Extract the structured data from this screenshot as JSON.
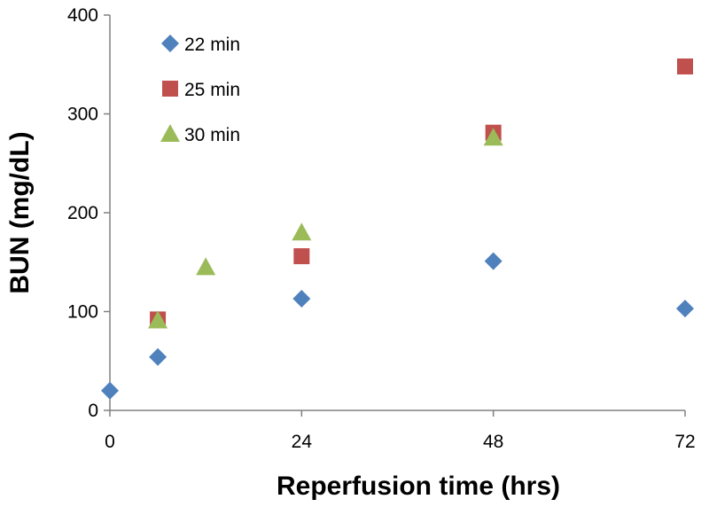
{
  "chart_data": {
    "type": "scatter",
    "title": "",
    "xlabel": "Reperfusion time (hrs)",
    "ylabel": "BUN (mg/dL)",
    "xlim": [
      0,
      72
    ],
    "ylim": [
      0,
      400
    ],
    "xticks": [
      0,
      24,
      48,
      72
    ],
    "yticks": [
      0,
      100,
      200,
      300,
      400
    ],
    "grid": false,
    "legend_position": "top-left",
    "series": [
      {
        "name": "22 min",
        "marker": "diamond",
        "color": "#4F81BD",
        "points": [
          {
            "x": 0,
            "y": 20
          },
          {
            "x": 6,
            "y": 54
          },
          {
            "x": 24,
            "y": 113
          },
          {
            "x": 48,
            "y": 151
          },
          {
            "x": 72,
            "y": 103
          }
        ]
      },
      {
        "name": "25 min",
        "marker": "square",
        "color": "#C0504D",
        "points": [
          {
            "x": 6,
            "y": 92
          },
          {
            "x": 24,
            "y": 156
          },
          {
            "x": 48,
            "y": 281
          },
          {
            "x": 72,
            "y": 348
          }
        ]
      },
      {
        "name": "30 min",
        "marker": "triangle",
        "color": "#9BBB59",
        "points": [
          {
            "x": 6,
            "y": 91
          },
          {
            "x": 12,
            "y": 145
          },
          {
            "x": 24,
            "y": 180
          },
          {
            "x": 48,
            "y": 276
          }
        ]
      }
    ]
  }
}
